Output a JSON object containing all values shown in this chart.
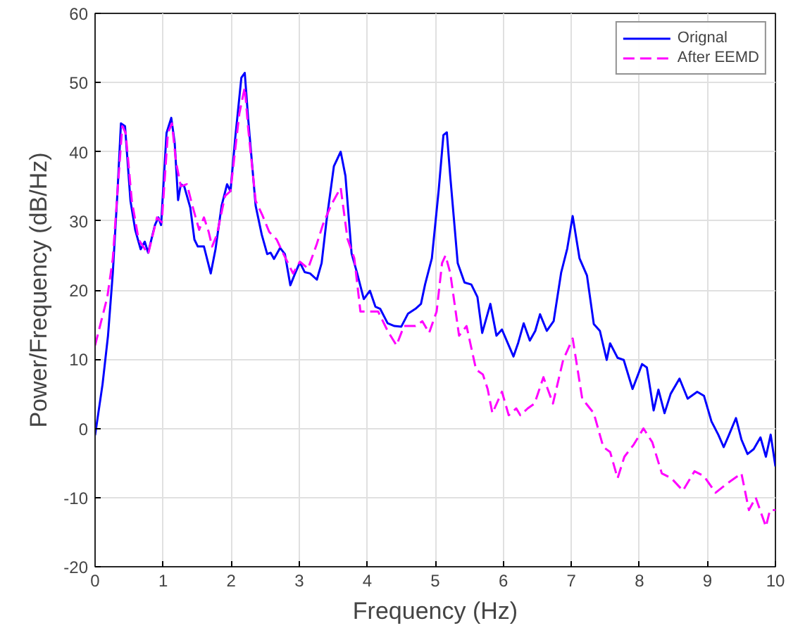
{
  "chart_data": {
    "type": "line",
    "xlabel": "Frequency (Hz)",
    "ylabel": "Power/Frequency (dB/Hz)",
    "xlim": [
      0,
      10
    ],
    "ylim": [
      -20,
      60
    ],
    "xticks": [
      0,
      1,
      2,
      3,
      4,
      5,
      6,
      7,
      8,
      9,
      10
    ],
    "yticks": [
      -20,
      -10,
      0,
      10,
      20,
      30,
      40,
      50,
      60
    ],
    "grid": true,
    "legend": "top right",
    "marker": "none",
    "series": [
      {
        "name": "Orignal",
        "color": "#0000ff",
        "line_style": "solid",
        "x": [
          0,
          0.11,
          0.19,
          0.26,
          0.33,
          0.38,
          0.44,
          0.52,
          0.59,
          0.67,
          0.73,
          0.78,
          0.88,
          0.93,
          0.97,
          1.05,
          1.12,
          1.17,
          1.22,
          1.26,
          1.31,
          1.4,
          1.46,
          1.51,
          1.6,
          1.7,
          1.77,
          1.86,
          1.94,
          1.99,
          2.06,
          2.15,
          2.2,
          2.25,
          2.36,
          2.45,
          2.53,
          2.58,
          2.63,
          2.72,
          2.79,
          2.87,
          2.94,
          3.01,
          3.08,
          3.16,
          3.26,
          3.33,
          3.4,
          3.51,
          3.61,
          3.68,
          3.77,
          3.85,
          3.95,
          4.04,
          4.12,
          4.19,
          4.3,
          4.4,
          4.5,
          4.6,
          4.71,
          4.79,
          4.85,
          4.95,
          5.05,
          5.12,
          5.17,
          5.22,
          5.33,
          5.43,
          5.53,
          5.62,
          5.69,
          5.81,
          5.9,
          5.98,
          6.08,
          6.15,
          6.22,
          6.3,
          6.39,
          6.47,
          6.54,
          6.64,
          6.74,
          6.85,
          6.94,
          7.02,
          7.12,
          7.23,
          7.33,
          7.42,
          7.52,
          7.57,
          7.68,
          7.77,
          7.9,
          8.04,
          8.11,
          8.21,
          8.28,
          8.37,
          8.46,
          8.59,
          8.71,
          8.85,
          8.95,
          9.06,
          9.16,
          9.24,
          9.31,
          9.42,
          9.5,
          9.59,
          9.68,
          9.78,
          9.86,
          9.93,
          10
        ],
        "values": [
          -1,
          6.4,
          13.4,
          22.4,
          34.3,
          44.1,
          43.7,
          32.9,
          28.7,
          25.9,
          27,
          25.4,
          29.4,
          30.5,
          29.4,
          42.7,
          44.9,
          41.3,
          33,
          35.3,
          35,
          31.9,
          27.3,
          26.3,
          26.3,
          22.4,
          25.9,
          32.2,
          35.3,
          34.3,
          42,
          50.7,
          51.4,
          44.8,
          32.2,
          28,
          25.2,
          25.4,
          24.5,
          26.1,
          25.2,
          20.7,
          22.4,
          24,
          22.6,
          22.4,
          21.5,
          23.9,
          29.9,
          37.9,
          40,
          36.5,
          25.3,
          22.5,
          18.7,
          19.9,
          17.6,
          17.3,
          15.2,
          14.8,
          14.7,
          16.6,
          17.3,
          18,
          20.8,
          24.6,
          34.4,
          42.4,
          42.8,
          36.5,
          23.9,
          21.1,
          20.8,
          19,
          13.8,
          18,
          13.4,
          14.3,
          12,
          10.4,
          12.4,
          15.2,
          12.7,
          14.1,
          16.5,
          14.1,
          15.5,
          22.5,
          26,
          30.7,
          24.6,
          22.1,
          15.1,
          14.1,
          9.9,
          12.3,
          10.2,
          9.9,
          5.7,
          9.3,
          8.8,
          2.6,
          5.6,
          2.2,
          5,
          7.2,
          4.3,
          5.3,
          4.7,
          1,
          -0.9,
          -2.7,
          -1.1,
          1.5,
          -1.6,
          -3.7,
          -3,
          -1.3,
          -4.1,
          -0.9,
          -5.5
        ]
      },
      {
        "name": "After EEMD",
        "color": "#ff00ff",
        "line_style": "dashed",
        "x": [
          0,
          0.09,
          0.18,
          0.26,
          0.33,
          0.4,
          0.45,
          0.54,
          0.64,
          0.78,
          0.91,
          0.98,
          1.07,
          1.13,
          1.19,
          1.26,
          1.35,
          1.43,
          1.53,
          1.6,
          1.67,
          1.72,
          1.79,
          1.91,
          1.99,
          2.12,
          2.2,
          2.25,
          2.36,
          2.46,
          2.56,
          2.67,
          2.77,
          2.91,
          3.01,
          3.13,
          3.26,
          3.35,
          3.47,
          3.61,
          3.71,
          3.81,
          3.9,
          4.02,
          4.16,
          4.3,
          4.43,
          4.54,
          4.71,
          4.81,
          4.91,
          5.02,
          5.1,
          5.15,
          5.22,
          5.35,
          5.46,
          5.6,
          5.7,
          5.77,
          5.84,
          5.98,
          6.08,
          6.19,
          6.25,
          6.36,
          6.46,
          6.59,
          6.73,
          6.88,
          7.02,
          7.16,
          7.33,
          7.47,
          7.57,
          7.68,
          7.78,
          7.92,
          8.06,
          8.19,
          8.33,
          8.47,
          8.64,
          8.81,
          8.95,
          9.12,
          9.3,
          9.5,
          9.61,
          9.71,
          9.86,
          9.92,
          10
        ],
        "values": [
          12,
          15.5,
          19,
          24.5,
          34.3,
          43.7,
          42.7,
          32.9,
          27.3,
          25.2,
          30.5,
          29.8,
          42.7,
          44.1,
          38.5,
          35,
          35.3,
          32.2,
          28.7,
          30.5,
          28.4,
          26.3,
          28,
          33.6,
          34.3,
          45.5,
          49.3,
          43.4,
          32.9,
          30.8,
          28.4,
          27.3,
          25.2,
          22.4,
          24.1,
          23.1,
          26.7,
          29.5,
          32.3,
          34.8,
          27.4,
          24.6,
          16.9,
          16.9,
          16.9,
          14.1,
          12,
          14.8,
          14.8,
          15.5,
          13.8,
          16.9,
          23.9,
          25,
          22.5,
          13.4,
          14.8,
          8.5,
          7.8,
          5.7,
          2.2,
          5.3,
          1.9,
          2.9,
          1.9,
          2.9,
          3.6,
          7.4,
          3.6,
          9.9,
          13,
          4.3,
          2.2,
          -2.7,
          -3.4,
          -7.2,
          -4.1,
          -2.3,
          0,
          -2,
          -6.5,
          -7.2,
          -9,
          -6.2,
          -6.9,
          -9.3,
          -7.9,
          -6.5,
          -11.8,
          -10,
          -14.2,
          -11.8,
          -11.8
        ]
      }
    ]
  }
}
